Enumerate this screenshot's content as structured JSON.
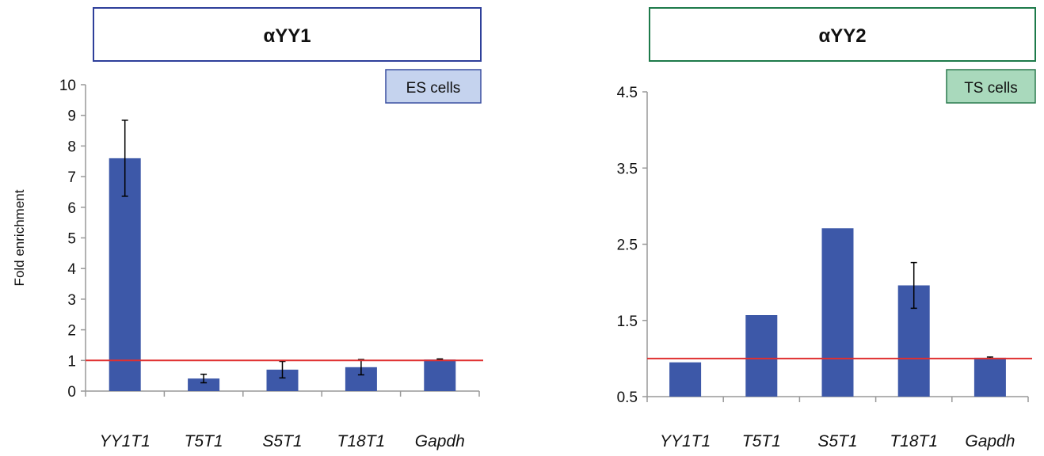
{
  "chart_data": [
    {
      "type": "bar",
      "title": "αYY1",
      "annotation": "ES cells",
      "ylabel": "Fold enrichment",
      "categories": [
        "YY1T1",
        "T5T1",
        "S5T1",
        "T18T1",
        "Gapdh"
      ],
      "values": [
        7.6,
        0.41,
        0.7,
        0.78,
        1.03
      ],
      "errors": [
        1.24,
        0.14,
        0.27,
        0.25,
        0.02
      ],
      "color": "#3d58a8",
      "reference_line": 1,
      "reference_color": "#e03030",
      "title_border": "#2e3f9a",
      "annotation_fill": "#c5d3ee",
      "annotation_border": "#3a4fa0",
      "ylim": [
        0,
        10
      ],
      "yticks": [
        0,
        1,
        2,
        3,
        4,
        5,
        6,
        7,
        8,
        9,
        10
      ]
    },
    {
      "type": "bar",
      "title": "αYY2",
      "annotation": "TS cells",
      "categories": [
        "YY1T1",
        "T5T1",
        "S5T1",
        "T18T1",
        "Gapdh"
      ],
      "values": [
        0.95,
        1.57,
        2.71,
        1.96,
        1.01
      ],
      "errors": [
        null,
        null,
        null,
        0.3,
        0.01
      ],
      "color": "#3d58a8",
      "reference_line": 1,
      "reference_color": "#e03030",
      "title_border": "#1d7a4a",
      "annotation_fill": "#a9d9bc",
      "annotation_border": "#2b7a4e",
      "ylim": [
        0.5,
        4.5
      ],
      "yticks": [
        0.5,
        1.5,
        2.5,
        3.5,
        4.5
      ]
    }
  ]
}
